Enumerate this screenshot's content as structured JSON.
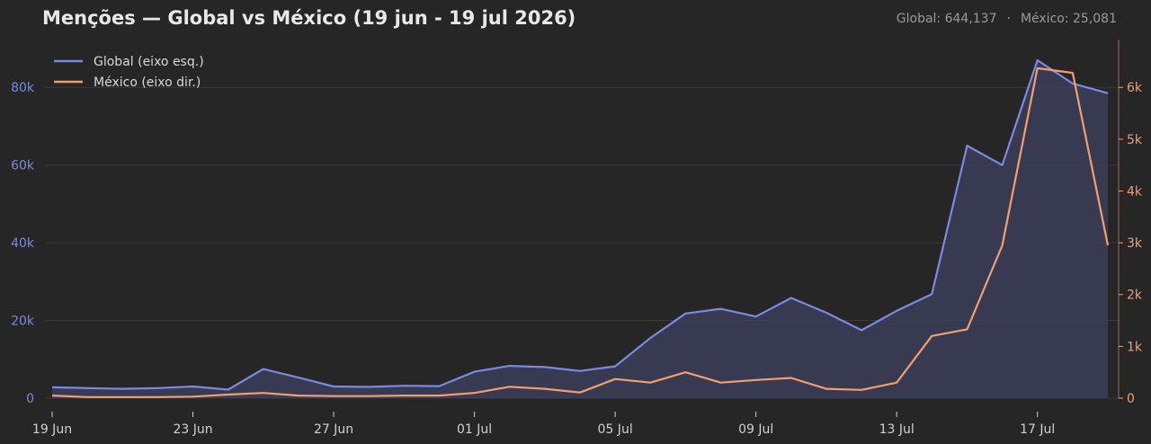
{
  "header": {
    "title": "Menções — Global vs México (19 jun - 19 jul 2026)",
    "global_total": "Global: 644,137",
    "separator": "·",
    "mexico_total": "México: 25,081"
  },
  "colors": {
    "background": "#262626",
    "grid": "#3a3a3a",
    "global": "#7b8ae0",
    "mexico": "#f0a070",
    "area_fill": "#3d4160",
    "axis_text": "#d0d0d0"
  },
  "chart_data": {
    "type": "line",
    "title": "Menções — Global vs México (19 jun - 19 jul 2026)",
    "x": [
      "2026-06-19",
      "2026-06-20",
      "2026-06-21",
      "2026-06-22",
      "2026-06-23",
      "2026-06-24",
      "2026-06-25",
      "2026-06-26",
      "2026-06-27",
      "2026-06-28",
      "2026-06-29",
      "2026-06-30",
      "2026-07-01",
      "2026-07-02",
      "2026-07-03",
      "2026-07-04",
      "2026-07-05",
      "2026-07-06",
      "2026-07-07",
      "2026-07-08",
      "2026-07-09",
      "2026-07-10",
      "2026-07-11",
      "2026-07-12",
      "2026-07-13",
      "2026-07-14",
      "2026-07-15",
      "2026-07-16",
      "2026-07-17",
      "2026-07-18",
      "2026-07-19"
    ],
    "x_tick_labels": [
      "19 Jun",
      "23 Jun",
      "27 Jun",
      "01 Jul",
      "05 Jul",
      "09 Jul",
      "13 Jul",
      "17 Jul"
    ],
    "x_tick_dates": [
      "2026-06-19",
      "2026-06-23",
      "2026-06-27",
      "2026-07-01",
      "2026-07-05",
      "2026-07-09",
      "2026-07-13",
      "2026-07-17"
    ],
    "series": [
      {
        "name": "Global (eixo esq.)",
        "axis": "left",
        "values": [
          2800,
          2600,
          2400,
          2600,
          3000,
          2200,
          7500,
          5300,
          3000,
          2900,
          3200,
          3100,
          6800,
          8300,
          8000,
          7000,
          8200,
          15500,
          21800,
          23000,
          21000,
          25800,
          22000,
          17500,
          22500,
          26800,
          65000,
          60000,
          87000,
          81000,
          78500
        ]
      },
      {
        "name": "México (eixo dir.)",
        "axis": "right",
        "values": [
          50,
          20,
          20,
          20,
          30,
          70,
          100,
          50,
          40,
          40,
          50,
          50,
          100,
          220,
          180,
          110,
          370,
          300,
          500,
          300,
          350,
          390,
          180,
          160,
          300,
          1200,
          1330,
          2950,
          6370,
          6280,
          2950
        ]
      }
    ],
    "y_left": {
      "ticks": [
        0,
        20000,
        40000,
        60000,
        80000
      ],
      "tick_labels": [
        "0",
        "20k",
        "40k",
        "60k",
        "80k"
      ],
      "ylim": [
        0,
        90000
      ]
    },
    "y_right": {
      "ticks": [
        0,
        1000,
        2000,
        3000,
        4000,
        5000,
        6000
      ],
      "tick_labels": [
        "0",
        "1k",
        "2k",
        "3k",
        "4k",
        "5k",
        "6k"
      ],
      "ylim": [
        0,
        6750
      ]
    },
    "legend": {
      "placement": "top-left",
      "entries": [
        "Global (eixo esq.)",
        "México (eixo dir.)"
      ]
    },
    "grid": true
  }
}
